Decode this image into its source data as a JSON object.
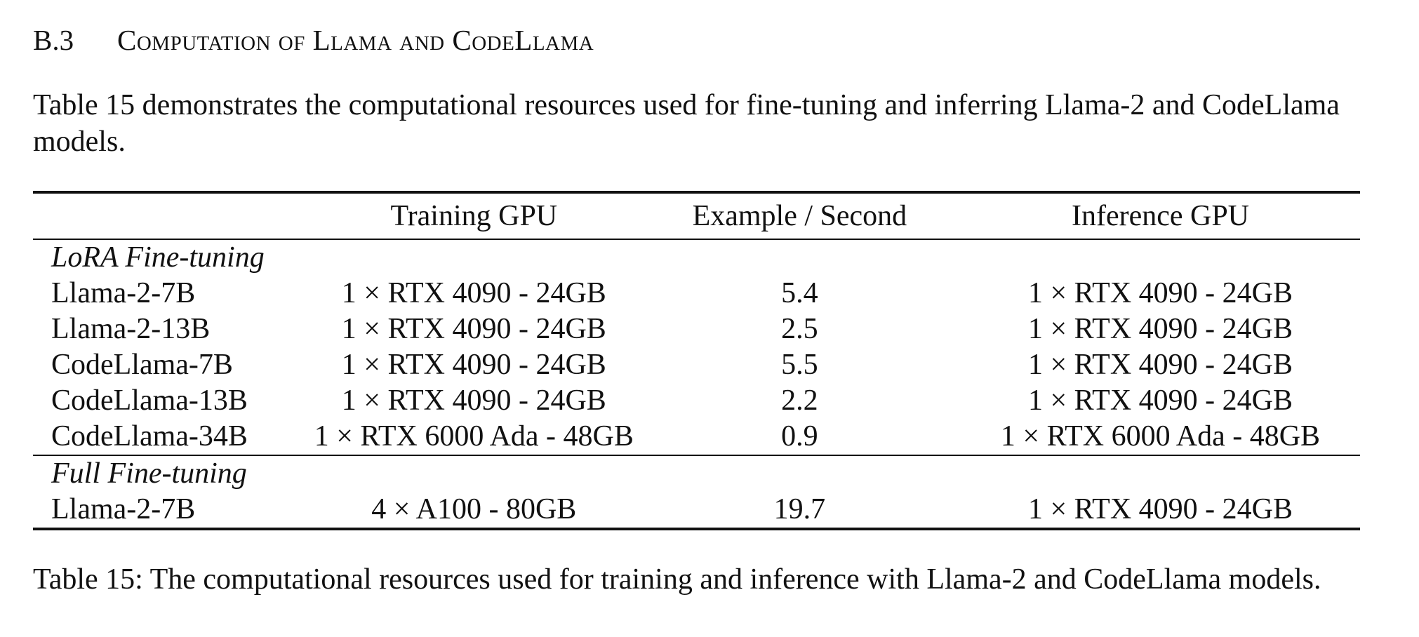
{
  "section": {
    "number": "B.3",
    "title": "Computation of Llama and CodeLlama"
  },
  "intro": "Table 15 demonstrates the computational resources used for fine-tuning and inferring Llama-2 and CodeLlama models.",
  "table": {
    "headers": [
      "",
      "Training GPU",
      "Example / Second",
      "Inference GPU"
    ],
    "groups": [
      {
        "label": "LoRA Fine-tuning",
        "rows": [
          [
            "Llama-2-7B",
            "1 × RTX 4090 - 24GB",
            "5.4",
            "1 × RTX 4090 - 24GB"
          ],
          [
            "Llama-2-13B",
            "1 × RTX 4090 - 24GB",
            "2.5",
            "1 × RTX 4090 - 24GB"
          ],
          [
            "CodeLlama-7B",
            "1 × RTX 4090 - 24GB",
            "5.5",
            "1 × RTX 4090 - 24GB"
          ],
          [
            "CodeLlama-13B",
            "1 × RTX 4090 - 24GB",
            "2.2",
            "1 × RTX 4090 - 24GB"
          ],
          [
            "CodeLlama-34B",
            "1 × RTX 6000 Ada - 48GB",
            "0.9",
            "1 × RTX 6000 Ada - 48GB"
          ]
        ]
      },
      {
        "label": "Full Fine-tuning",
        "rows": [
          [
            "Llama-2-7B",
            "4 × A100 - 80GB",
            "19.7",
            "1 × RTX 4090 - 24GB"
          ]
        ]
      }
    ]
  },
  "caption": "Table 15: The computational resources used for training and inference with Llama-2 and CodeLlama models."
}
